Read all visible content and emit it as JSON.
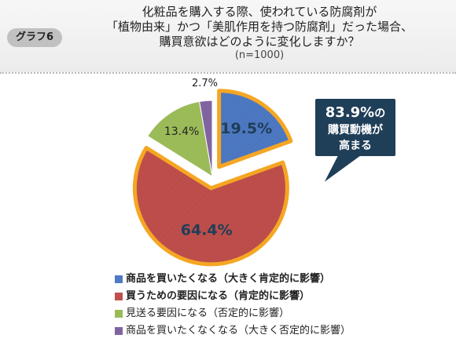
{
  "badge": "グラフ6",
  "title_lines": [
    "化粧品を購入する際、使われている防腐剤が",
    "「植物由来」かつ「美肌作用を持つ防腐剤」だった場合、",
    "購買意欲はどのように変化しますか？"
  ],
  "sample_size": "(n=1000)",
  "callout": {
    "value": "83.9%",
    "suffix": "の",
    "line2": "購買動機が",
    "line3": "高まる"
  },
  "chart_data": {
    "type": "pie",
    "title": "",
    "slices": [
      {
        "label": "商品を買いたくなる（大きく肯定的に影響）",
        "value": 19.5,
        "value_label": "19.5%",
        "color": "#4f7bc4",
        "highlight": true,
        "bold": true
      },
      {
        "label": "買うための要因になる（肯定的に影響）",
        "value": 64.4,
        "value_label": "64.4%",
        "color": "#c0504d",
        "highlight": true,
        "bold": true
      },
      {
        "label": "見送る要因になる（否定的に影響）",
        "value": 13.4,
        "value_label": "13.4%",
        "color": "#9bbb59",
        "highlight": false,
        "bold": false
      },
      {
        "label": "商品を買いたくなくなる（大きく否定的に影響）",
        "value": 2.7,
        "value_label": "2.7%",
        "color": "#8064a2",
        "highlight": false,
        "bold": false
      }
    ],
    "highlight_color": "#f5a623",
    "legend_position": "bottom"
  }
}
